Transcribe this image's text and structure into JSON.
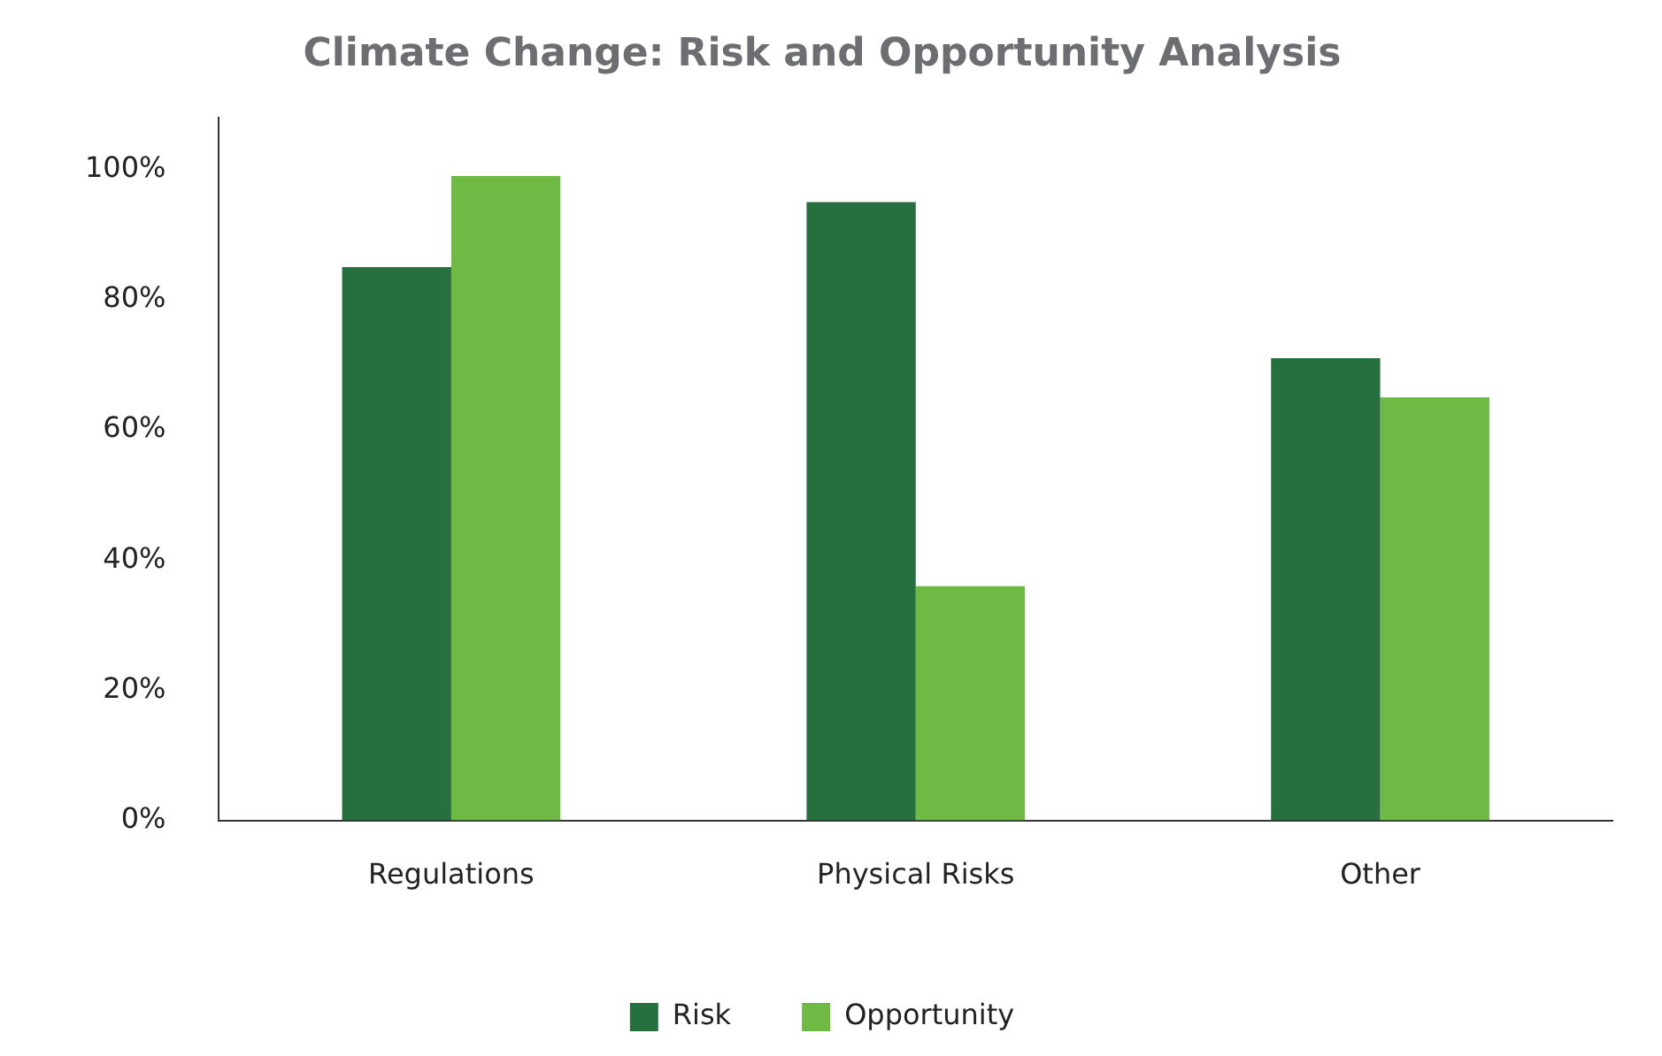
{
  "chart_data": {
    "type": "bar",
    "title": "Climate Change: Risk and Opportunity Analysis",
    "categories": [
      "Regulations",
      "Physical Risks",
      "Other"
    ],
    "series": [
      {
        "name": "Risk",
        "color": "#267040",
        "values": [
          85,
          95,
          71
        ]
      },
      {
        "name": "Opportunity",
        "color": "#6fba44",
        "values": [
          99,
          36,
          65
        ]
      }
    ],
    "ylim": [
      0,
      108
    ],
    "yticks": [
      {
        "value": 0,
        "label": "0%"
      },
      {
        "value": 20,
        "label": "20%"
      },
      {
        "value": 40,
        "label": "40%"
      },
      {
        "value": 60,
        "label": "60%"
      },
      {
        "value": 80,
        "label": "80%"
      },
      {
        "value": 100,
        "label": "100%"
      }
    ],
    "grid": false,
    "legend": "bottom"
  }
}
